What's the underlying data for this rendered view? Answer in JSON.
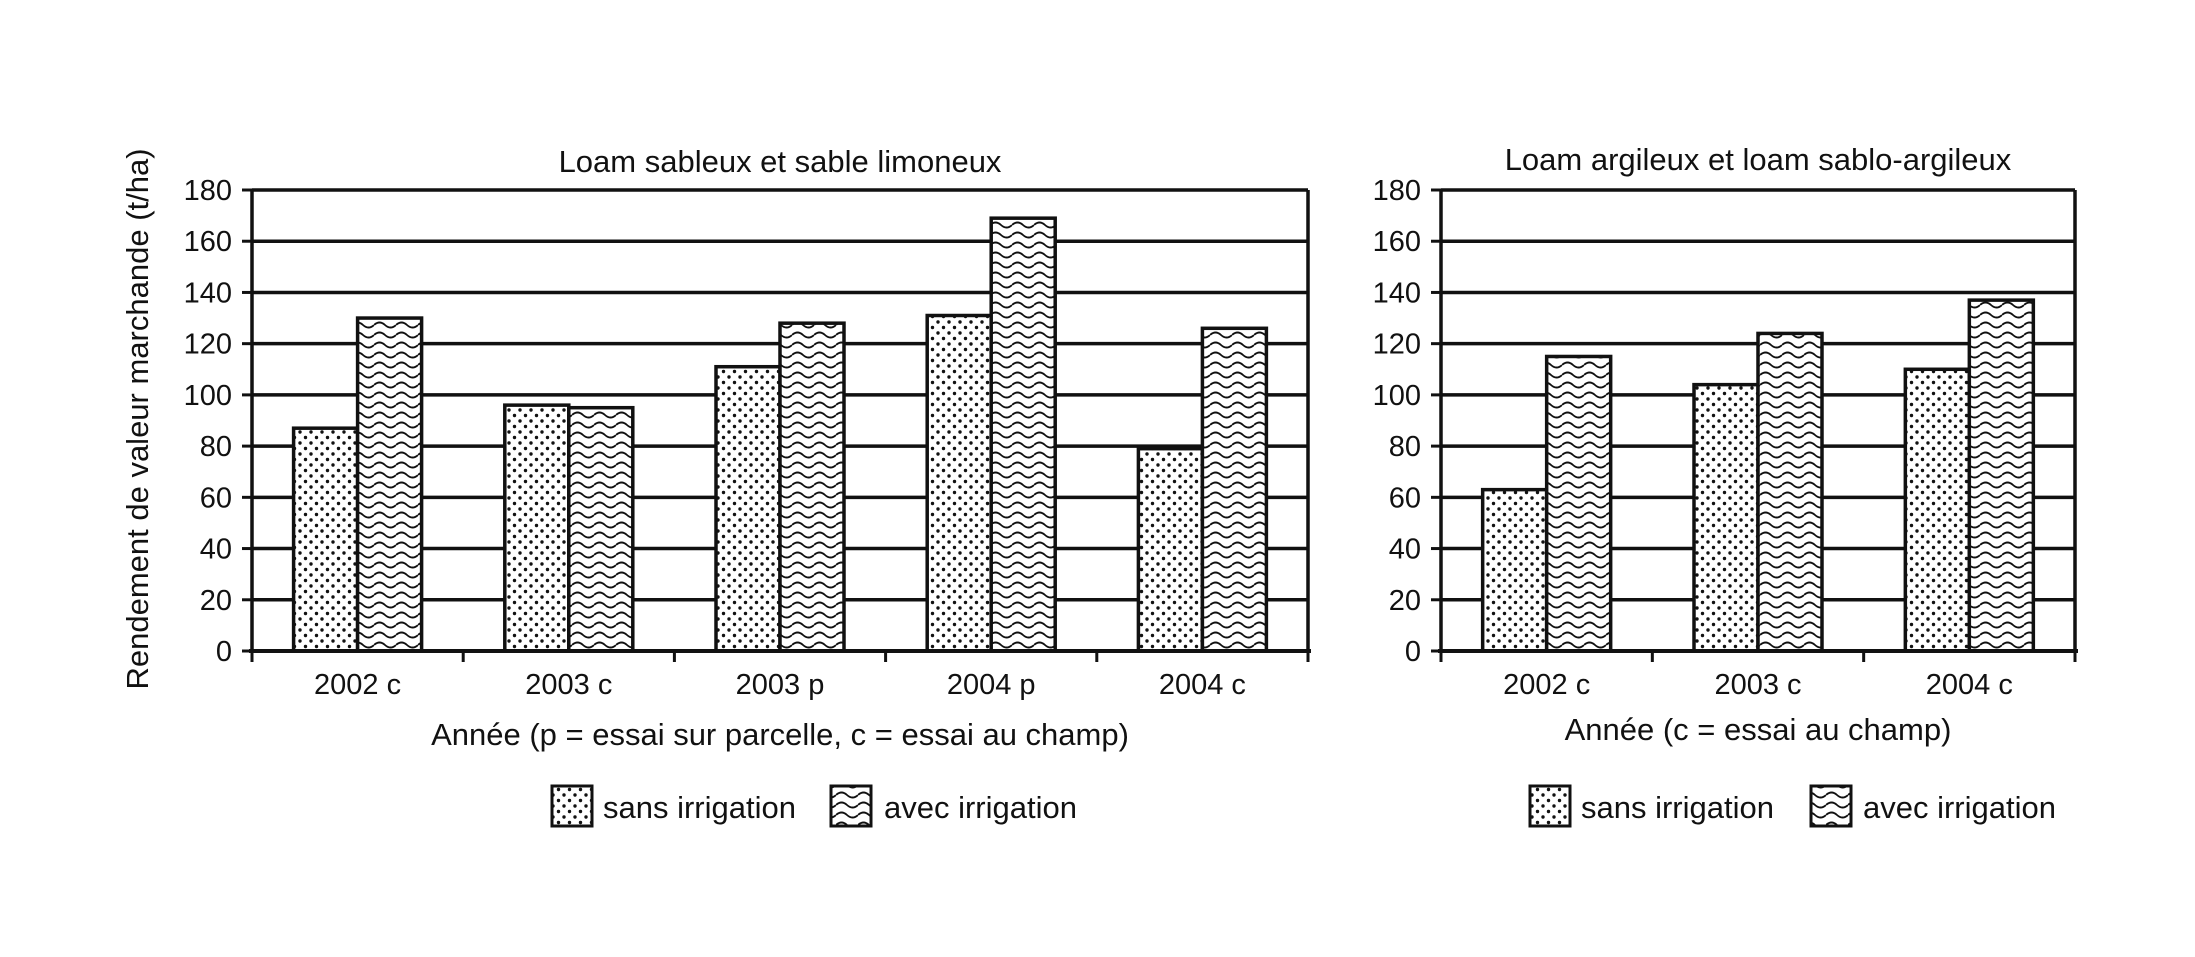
{
  "y_axis_label": "Rendement de valeur marchande (t/ha)",
  "chart_data": [
    {
      "type": "bar",
      "title": "Loam sableux et sable limoneux",
      "xlabel": "Année (p = essai sur parcelle, c = essai au champ)",
      "ylabel": "Rendement de valeur marchande (t/ha)",
      "categories": [
        "2002 c",
        "2003 c",
        "2003 p",
        "2004 p",
        "2004 c"
      ],
      "series": [
        {
          "name": "sans irrigation",
          "pattern": "dots",
          "values": [
            87,
            96,
            111,
            131,
            79
          ]
        },
        {
          "name": "avec irrigation",
          "pattern": "waves",
          "values": [
            130,
            95,
            128,
            169,
            126
          ]
        }
      ],
      "ylim": [
        0,
        180
      ],
      "yticks": [
        0,
        20,
        40,
        60,
        80,
        100,
        120,
        140,
        160,
        180
      ],
      "grid": true,
      "legend": "bottom-center"
    },
    {
      "type": "bar",
      "title": "Loam argileux et loam sablo-argileux",
      "xlabel": "Année  (c = essai au champ)",
      "ylabel": "",
      "categories": [
        "2002 c",
        "2003 c",
        "2004 c"
      ],
      "series": [
        {
          "name": "sans irrigation",
          "pattern": "dots",
          "values": [
            63,
            104,
            110
          ]
        },
        {
          "name": "avec irrigation",
          "pattern": "waves",
          "values": [
            115,
            124,
            137
          ]
        }
      ],
      "ylim": [
        0,
        180
      ],
      "yticks": [
        0,
        20,
        40,
        60,
        80,
        100,
        120,
        140,
        160,
        180
      ],
      "grid": true,
      "legend": "bottom-center"
    }
  ],
  "colors": {
    "bar_fill": "#ffffff",
    "pattern_ink": "#111111",
    "axis": "#111111"
  }
}
